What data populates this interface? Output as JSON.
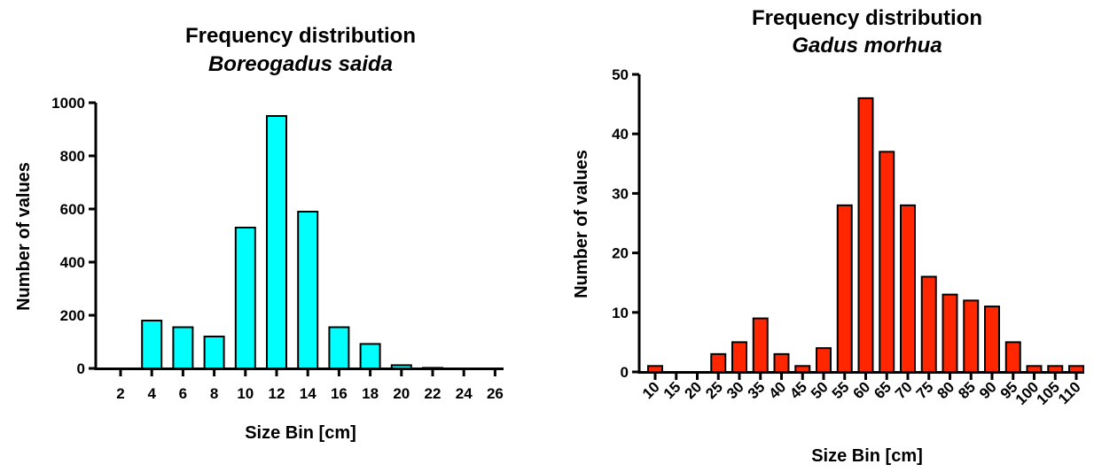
{
  "chart_data": [
    {
      "type": "bar",
      "title": "Frequency distribution",
      "subtitle": "Boreogadus saida",
      "xlabel": "Size Bin [cm]",
      "ylabel": "Number of values",
      "ylim": [
        0,
        1000
      ],
      "yticks": [
        "0",
        "200",
        "400",
        "600",
        "800",
        "1000"
      ],
      "categories": [
        "2",
        "4",
        "6",
        "8",
        "10",
        "12",
        "14",
        "16",
        "18",
        "20",
        "22",
        "24",
        "26"
      ],
      "values": [
        0,
        180,
        155,
        120,
        530,
        950,
        590,
        155,
        92,
        12,
        2,
        0,
        0
      ],
      "bar_color": "#00ffff"
    },
    {
      "type": "bar",
      "title": "Frequency distribution",
      "subtitle": "Gadus morhua",
      "xlabel": "Size Bin [cm]",
      "ylabel": "Number of values",
      "ylim": [
        0,
        50
      ],
      "yticks": [
        "0",
        "10",
        "20",
        "30",
        "40",
        "50"
      ],
      "categories": [
        "10",
        "15",
        "20",
        "25",
        "30",
        "35",
        "40",
        "45",
        "50",
        "55",
        "60",
        "65",
        "70",
        "75",
        "80",
        "85",
        "90",
        "95",
        "100",
        "105",
        "110"
      ],
      "values": [
        1,
        0,
        0,
        3,
        5,
        9,
        3,
        1,
        4,
        28,
        46,
        37,
        28,
        16,
        13,
        12,
        11,
        5,
        1,
        1,
        1
      ],
      "bar_color": "#ff2600"
    }
  ]
}
